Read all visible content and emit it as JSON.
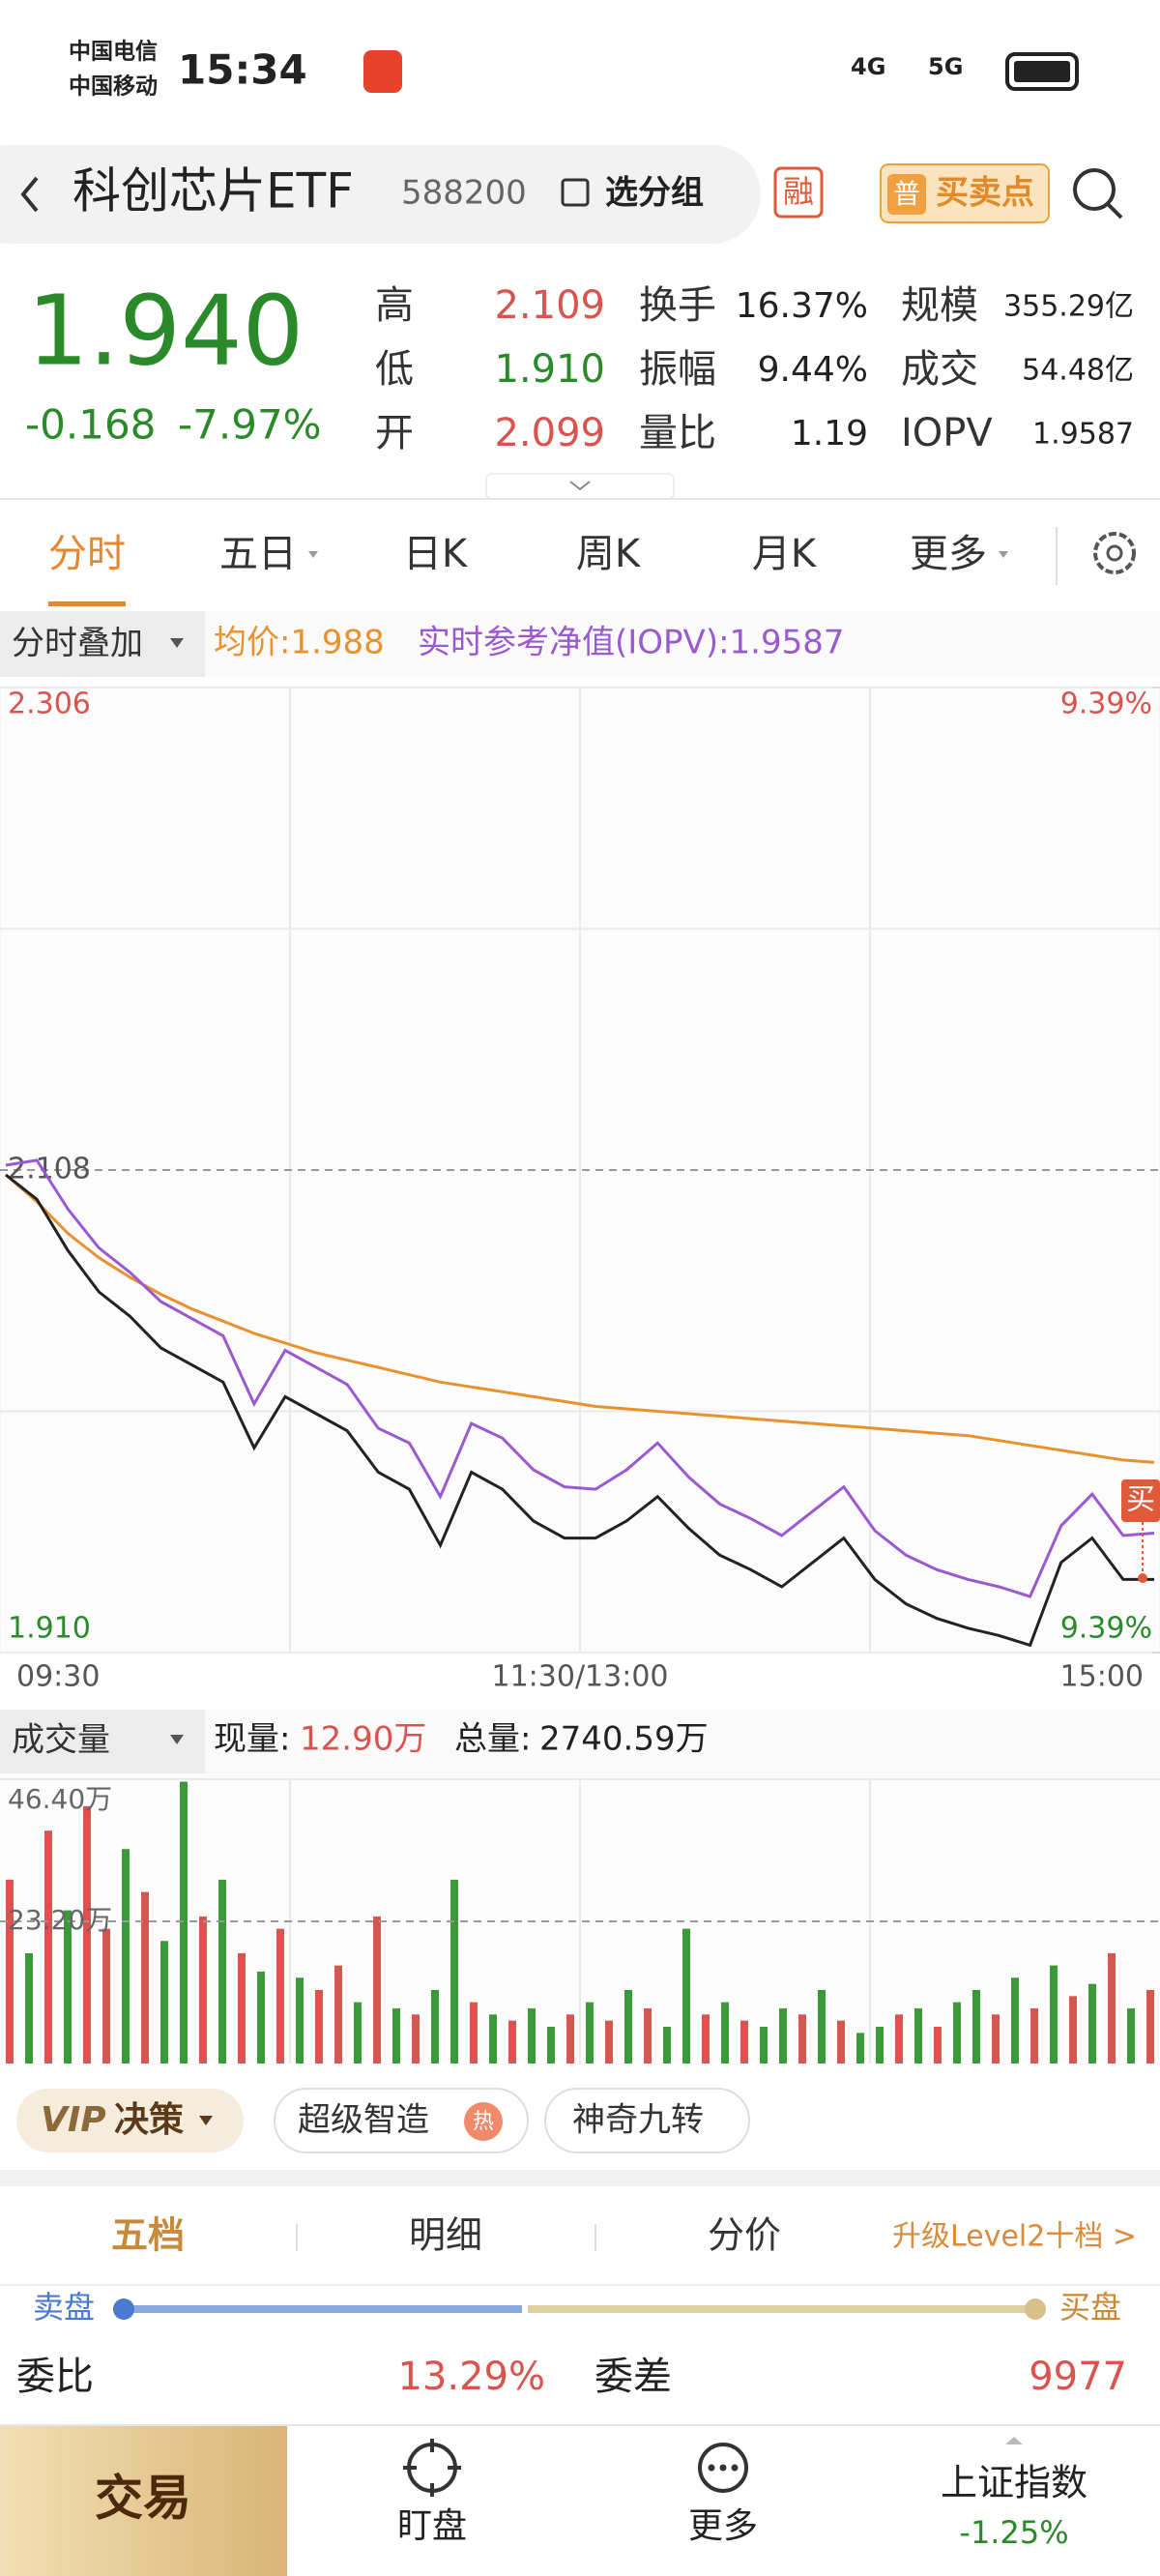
{
  "status": {
    "carrier1": "中国电信",
    "carrier2": "中国移动",
    "time": "15:34",
    "net1": "4G",
    "net2": "5G"
  },
  "header": {
    "title": "科创芯片ETF",
    "code": "588200",
    "group": "选分组",
    "margin": "融",
    "badge": "普",
    "buypoint": "买卖点"
  },
  "quote": {
    "price": "1.940",
    "change": "-0.168",
    "pct": "-7.97%",
    "fields": [
      [
        "高",
        "2.109"
      ],
      [
        "换手",
        "16.37%"
      ],
      [
        "规模",
        "355.29亿"
      ],
      [
        "低",
        "1.910"
      ],
      [
        "振幅",
        "9.44%"
      ],
      [
        "成交",
        "54.48亿"
      ],
      [
        "开",
        "2.099"
      ],
      [
        "量比",
        "1.19"
      ],
      [
        "IOPV",
        "1.9587"
      ]
    ]
  },
  "tabs": [
    "分时",
    "五日",
    "日K",
    "周K",
    "月K",
    "更多"
  ],
  "overlay": "分时叠加",
  "chart_data": [
    {
      "type": "line",
      "ylim": [
        1.91,
        2.306
      ],
      "yticks": [
        2.306,
        2.108,
        {
          "value": 1.91,
          "label": "1.910"
        }
      ],
      "y2lim": [
        -9.39,
        9.39
      ],
      "y2ticks": [
        {
          "value": 9.39,
          "label": "9.39%"
        },
        {
          "value": -9.39,
          "label": "9.39%"
        }
      ],
      "x_labels": [
        "09:30",
        "11:30/13:00",
        "15:00"
      ],
      "marker_label": "买",
      "series": [
        {
          "name": "均价:1.988",
          "color": "#e8912e",
          "values": [
            2.106,
            2.095,
            2.082,
            2.072,
            2.064,
            2.057,
            2.051,
            2.046,
            2.041,
            2.037,
            2.033,
            2.03,
            2.027,
            2.024,
            2.021,
            2.019,
            2.017,
            2.015,
            2.013,
            2.011,
            2.01,
            2.009,
            2.008,
            2.007,
            2.006,
            2.005,
            2.004,
            2.003,
            2.002,
            2.001,
            2.0,
            1.999,
            1.997,
            1.995,
            1.993,
            1.991,
            1.989,
            1.988
          ]
        },
        {
          "name": "实时参考净值(IOPV):1.9587",
          "color": "#9b59d0",
          "values": [
            2.11,
            2.112,
            2.092,
            2.076,
            2.066,
            2.054,
            2.047,
            2.04,
            2.012,
            2.034,
            2.027,
            2.02,
            2.002,
            1.996,
            1.974,
            2.004,
            1.998,
            1.985,
            1.978,
            1.977,
            1.985,
            1.996,
            1.982,
            1.971,
            1.965,
            1.958,
            1.968,
            1.978,
            1.96,
            1.95,
            1.944,
            1.94,
            1.937,
            1.933,
            1.962,
            1.975,
            1.958,
            1.959
          ]
        },
        {
          "color": "#222222",
          "values": [
            2.106,
            2.096,
            2.075,
            2.058,
            2.048,
            2.035,
            2.028,
            2.021,
            1.994,
            2.015,
            2.008,
            2.001,
            1.984,
            1.977,
            1.954,
            1.984,
            1.977,
            1.964,
            1.957,
            1.957,
            1.964,
            1.974,
            1.961,
            1.95,
            1.944,
            1.937,
            1.947,
            1.957,
            1.94,
            1.93,
            1.924,
            1.92,
            1.917,
            1.913,
            1.947,
            1.957,
            1.94,
            1.94
          ]
        }
      ]
    },
    {
      "type": "bar",
      "title": "成交量",
      "current_label": "现量:",
      "current": "12.90万",
      "total_label": "总量:",
      "total": "2740.59万",
      "ylim": [
        0,
        46.4
      ],
      "yticks": [
        {
          "value": 46.4,
          "label": "46.40万"
        },
        {
          "value": 23.2,
          "label": "23.20万"
        }
      ],
      "values": [
        30,
        18,
        38,
        25,
        42,
        22,
        35,
        28,
        20,
        46,
        24,
        30,
        18,
        15,
        22,
        14,
        12,
        16,
        10,
        24,
        9,
        8,
        12,
        30,
        10,
        8,
        7,
        9,
        6,
        8,
        10,
        7,
        12,
        9,
        6,
        22,
        8,
        10,
        7,
        6,
        9,
        8,
        12,
        7,
        5,
        6,
        8,
        9,
        6,
        10,
        12,
        8,
        14,
        9,
        16,
        11,
        13,
        18,
        9,
        12
      ],
      "colors": [
        "#d9534f",
        "#3a9a3a",
        "#d9534f",
        "#3a9a3a",
        "#d9534f",
        "#d9534f",
        "#3a9a3a",
        "#d9534f",
        "#3a9a3a",
        "#3a9a3a",
        "#d9534f",
        "#3a9a3a",
        "#d9534f",
        "#3a9a3a",
        "#d9534f",
        "#3a9a3a",
        "#d9534f",
        "#d9534f",
        "#3a9a3a",
        "#d9534f",
        "#3a9a3a",
        "#d9534f",
        "#3a9a3a",
        "#3a9a3a",
        "#d9534f",
        "#3a9a3a",
        "#d9534f",
        "#3a9a3a",
        "#3a9a3a",
        "#d9534f",
        "#3a9a3a",
        "#d9534f",
        "#3a9a3a",
        "#d9534f",
        "#3a9a3a",
        "#3a9a3a",
        "#d9534f",
        "#3a9a3a",
        "#d9534f",
        "#3a9a3a",
        "#3a9a3a",
        "#d9534f",
        "#3a9a3a",
        "#d9534f",
        "#3a9a3a",
        "#3a9a3a",
        "#d9534f",
        "#3a9a3a",
        "#d9534f",
        "#3a9a3a",
        "#3a9a3a",
        "#d9534f",
        "#3a9a3a",
        "#d9534f",
        "#3a9a3a",
        "#d9534f",
        "#3a9a3a",
        "#d9534f",
        "#3a9a3a",
        "#d9534f"
      ]
    }
  ],
  "vip": {
    "vip": "VIP",
    "decision": "决策",
    "pill1": "超级智造",
    "hot": "热",
    "pill2": "神奇九转"
  },
  "panel": {
    "tabs": [
      "五档",
      "明细",
      "分价"
    ],
    "upgrade": "升级Level2十档 >",
    "sell": "卖盘",
    "buy": "买盘",
    "weibi": "委比",
    "weibi_value": "13.29%",
    "weicha": "委差",
    "weicha_value": "9977"
  },
  "nav": {
    "trade": "交易",
    "watch": "盯盘",
    "more": "更多",
    "index": "上证指数",
    "index_change": "-1.25%"
  }
}
